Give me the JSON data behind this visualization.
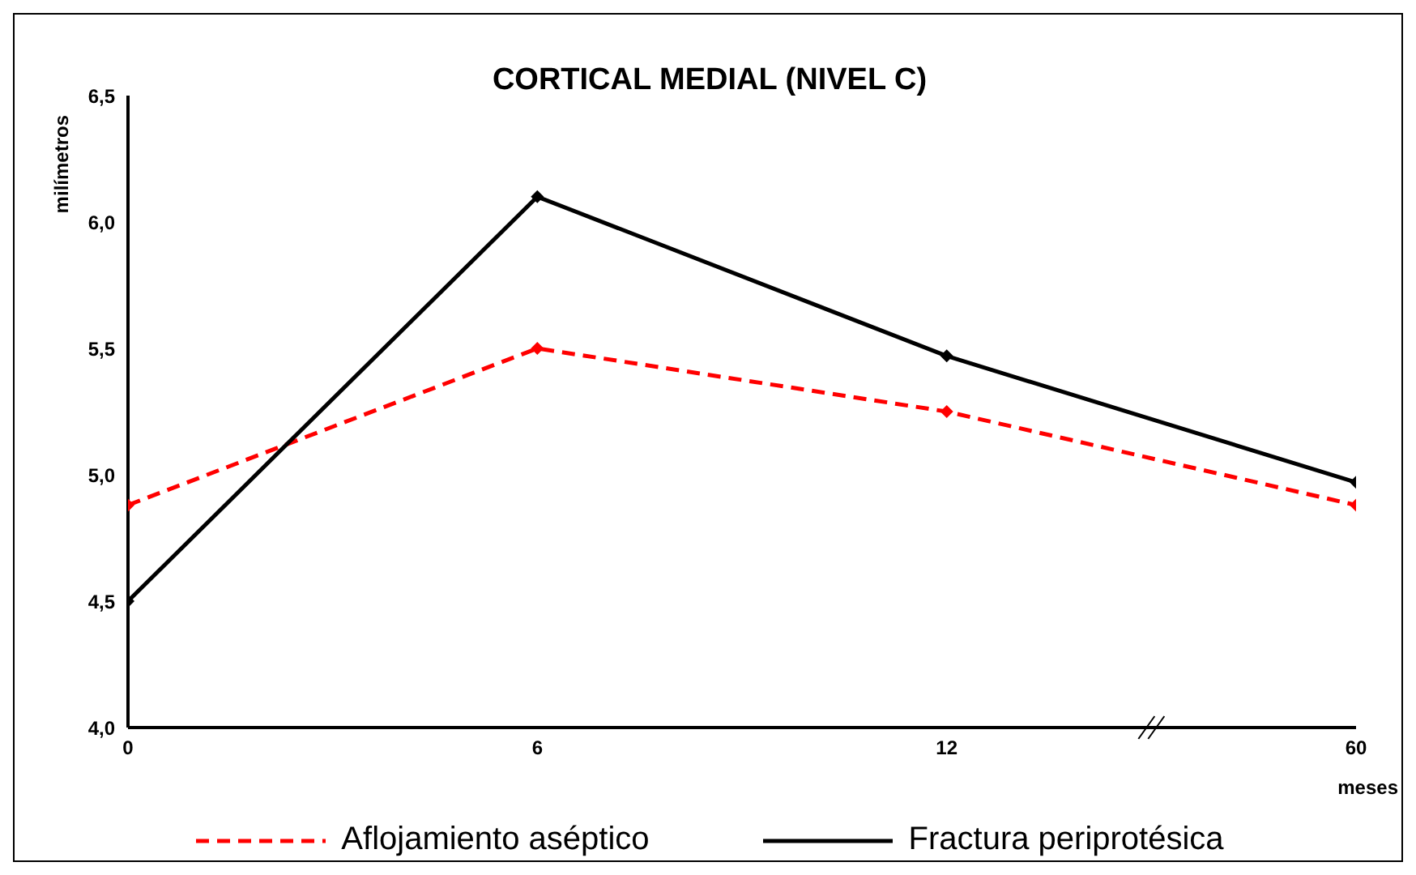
{
  "chart_data": {
    "type": "line",
    "title": "CORTICAL MEDIAL (NIVEL C)",
    "xlabel": "meses",
    "ylabel": "milímetros",
    "categories": [
      "0",
      "6",
      "12",
      "60"
    ],
    "series": [
      {
        "name": "Aflojamiento aséptico",
        "color": "#ff0000",
        "line_style": "dashed",
        "values": [
          4.88,
          5.5,
          5.25,
          4.88
        ]
      },
      {
        "name": "Fractura periprotésica",
        "color": "#000000",
        "line_style": "solid",
        "values": [
          4.5,
          6.1,
          5.47,
          4.97
        ]
      }
    ],
    "ylim": [
      4,
      6.5
    ],
    "yticks": [
      {
        "value": 4,
        "label": "4,0"
      },
      {
        "value": 4.5,
        "label": "4,5"
      },
      {
        "value": 5,
        "label": "5,0"
      },
      {
        "value": 5.5,
        "label": "5,5"
      },
      {
        "value": 6,
        "label": "6,0"
      },
      {
        "value": 6.5,
        "label": "6,5"
      }
    ],
    "grid": false,
    "legend": "bottom",
    "marker": "diamond"
  }
}
